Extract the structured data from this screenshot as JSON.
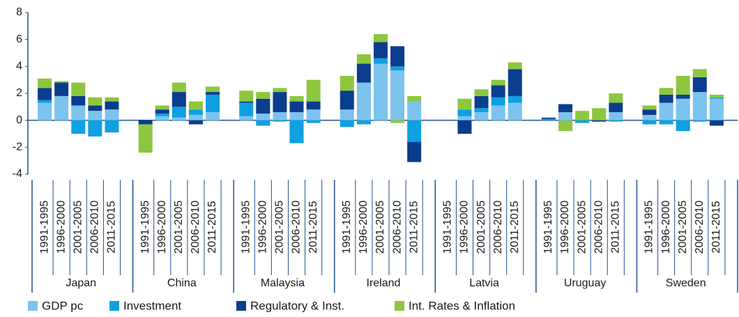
{
  "chart_data": {
    "type": "bar",
    "stacked": true,
    "groups": [
      "Japan",
      "China",
      "Malaysia",
      "Ireland",
      "Latvia",
      "Uruguay",
      "Sweden"
    ],
    "categories": [
      "1991-1995",
      "1996-2000",
      "2001-2005",
      "2006-2010",
      "2011-2015",
      "1991-1995",
      "1996-2000",
      "2001-2005",
      "2006-2010",
      "2011-2015",
      "1991-1995",
      "1996-2000",
      "2001-2005",
      "2006-2010",
      "2011-2015",
      "1991-1995",
      "1996-2000",
      "2001-2005",
      "2006-2010",
      "2011-2015",
      "1991-1995",
      "1996-2000",
      "2001-2005",
      "2006-2010",
      "2011-2015",
      "1991-1995",
      "1996-2000",
      "2001-2005",
      "2006-2010",
      "2011-2015",
      "1991-1995",
      "1996-2000",
      "2001-2005",
      "2006-2010",
      "2011-2015"
    ],
    "series": [
      {
        "name": "GDP pc",
        "color": "#7cc3ee",
        "values": [
          1.3,
          1.8,
          1.1,
          0.7,
          0.8,
          0,
          0.3,
          0.2,
          0.4,
          0.6,
          0.3,
          0.5,
          0.6,
          0.6,
          0.8,
          0.8,
          2.8,
          4.2,
          3.7,
          1.4,
          null,
          0.3,
          0.6,
          1.1,
          1.3,
          0,
          0.6,
          0,
          0,
          0.6,
          0.4,
          1.3,
          1.6,
          2.1,
          1.6
        ]
      },
      {
        "name": "Investment",
        "color": "#0fa0e2",
        "values": [
          0.2,
          0,
          -1.0,
          -1.2,
          -0.9,
          0,
          0.2,
          0.8,
          0.4,
          1.3,
          1.0,
          -0.4,
          -0.1,
          -1.7,
          -0.2,
          -0.5,
          -0.3,
          0.4,
          0.3,
          -1.6,
          null,
          0.5,
          0.3,
          0.6,
          0.5,
          0.1,
          0,
          -0.2,
          0,
          -0.1,
          -0.3,
          -0.3,
          -0.8,
          -0.1,
          0.1
        ]
      },
      {
        "name": "Regulatory & Inst.",
        "color": "#0b3d8e",
        "values": [
          0.9,
          1.0,
          0.7,
          0.4,
          0.6,
          -0.3,
          0.3,
          1.1,
          -0.3,
          0.2,
          0.1,
          1.1,
          1.5,
          0.8,
          0.6,
          1.4,
          1.4,
          1.2,
          1.5,
          -1.5,
          null,
          -1.0,
          0.9,
          0.9,
          2.0,
          0.1,
          0.6,
          0,
          -0.1,
          0.7,
          0.4,
          0.6,
          0.3,
          1.1,
          -0.4
        ]
      },
      {
        "name": "Int. Rates & Inflation",
        "color": "#8dc63f",
        "values": [
          0.7,
          0.1,
          1.0,
          0.6,
          0.3,
          -2.1,
          0.3,
          0.7,
          0.6,
          0.4,
          0.8,
          0.5,
          0.3,
          0.4,
          1.6,
          1.1,
          0.7,
          0.6,
          -0.2,
          0.4,
          null,
          0.8,
          0.5,
          0.4,
          0.5,
          0,
          -0.8,
          0.7,
          0.9,
          0.7,
          0.3,
          0.5,
          1.4,
          0.6,
          0.2
        ]
      }
    ],
    "ylim": [
      -4,
      8
    ],
    "yticks": [
      -4,
      -2,
      0,
      2,
      4,
      6,
      8
    ]
  }
}
